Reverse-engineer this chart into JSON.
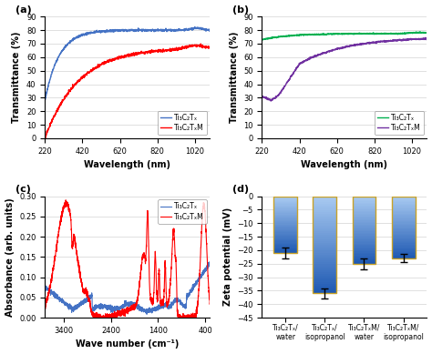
{
  "panel_a": {
    "title": "(a)",
    "xlabel": "Wavelength (nm)",
    "ylabel": "Transmittance (%)",
    "xlim": [
      220,
      1100
    ],
    "ylim": [
      0,
      90
    ],
    "xticks": [
      220,
      420,
      620,
      820,
      1020
    ],
    "yticks": [
      0,
      10,
      20,
      30,
      40,
      50,
      60,
      70,
      80,
      90
    ],
    "blue_label": "Ti₃C₂Tₓ",
    "red_label": "Ti₃C₂TₓM",
    "blue_color": "#4472C4",
    "red_color": "#FF0000",
    "legend_loc": "lower right"
  },
  "panel_b": {
    "title": "(b)",
    "xlabel": "Wavelength (nm)",
    "ylabel": "Transmittance (%)",
    "xlim": [
      220,
      1100
    ],
    "ylim": [
      0,
      90
    ],
    "xticks": [
      220,
      420,
      620,
      820,
      1020
    ],
    "yticks": [
      0,
      10,
      20,
      30,
      40,
      50,
      60,
      70,
      80,
      90
    ],
    "green_label": "Ti₃C₂Tₓ",
    "purple_label": "Ti₃C₂TₓM",
    "green_color": "#00B050",
    "purple_color": "#7030A0",
    "legend_loc": "lower right"
  },
  "panel_c": {
    "title": "(c)",
    "xlabel": "Wave number (cm⁻¹)",
    "ylabel": "Absorbance (arb. units)",
    "xlim": [
      3800,
      300
    ],
    "ylim": [
      0.0,
      0.3
    ],
    "xticks": [
      3400,
      2400,
      1400,
      400
    ],
    "yticks": [
      0.0,
      0.05,
      0.1,
      0.15,
      0.2,
      0.25,
      0.3
    ],
    "blue_label": "Ti₃C₂Tₓ",
    "red_label": "Ti₃C₂TₓM",
    "blue_color": "#4472C4",
    "red_color": "#FF0000",
    "legend_loc": "upper left"
  },
  "panel_d": {
    "title": "(d)",
    "ylabel": "Zeta potential (mV)",
    "ylim": [
      -45,
      0
    ],
    "yticks": [
      -45,
      -40,
      -35,
      -30,
      -25,
      -20,
      -15,
      -10,
      -5,
      0
    ],
    "bar_color_top": "#ADD8E6",
    "bar_color_bottom": "#1F4E8C",
    "bar_border_color": "#C9A227",
    "categories": [
      "Ti₃C₂Tₓ/\nwater",
      "Ti₃C₂Tₓ/\nisopropanol",
      "Ti₃C₂TₓM/\nwater",
      "Ti₃C₂TₓM/\nisopropanol"
    ],
    "values": [
      -21,
      -36,
      -25,
      -23
    ],
    "errors": [
      2,
      2,
      2,
      1.5
    ]
  }
}
